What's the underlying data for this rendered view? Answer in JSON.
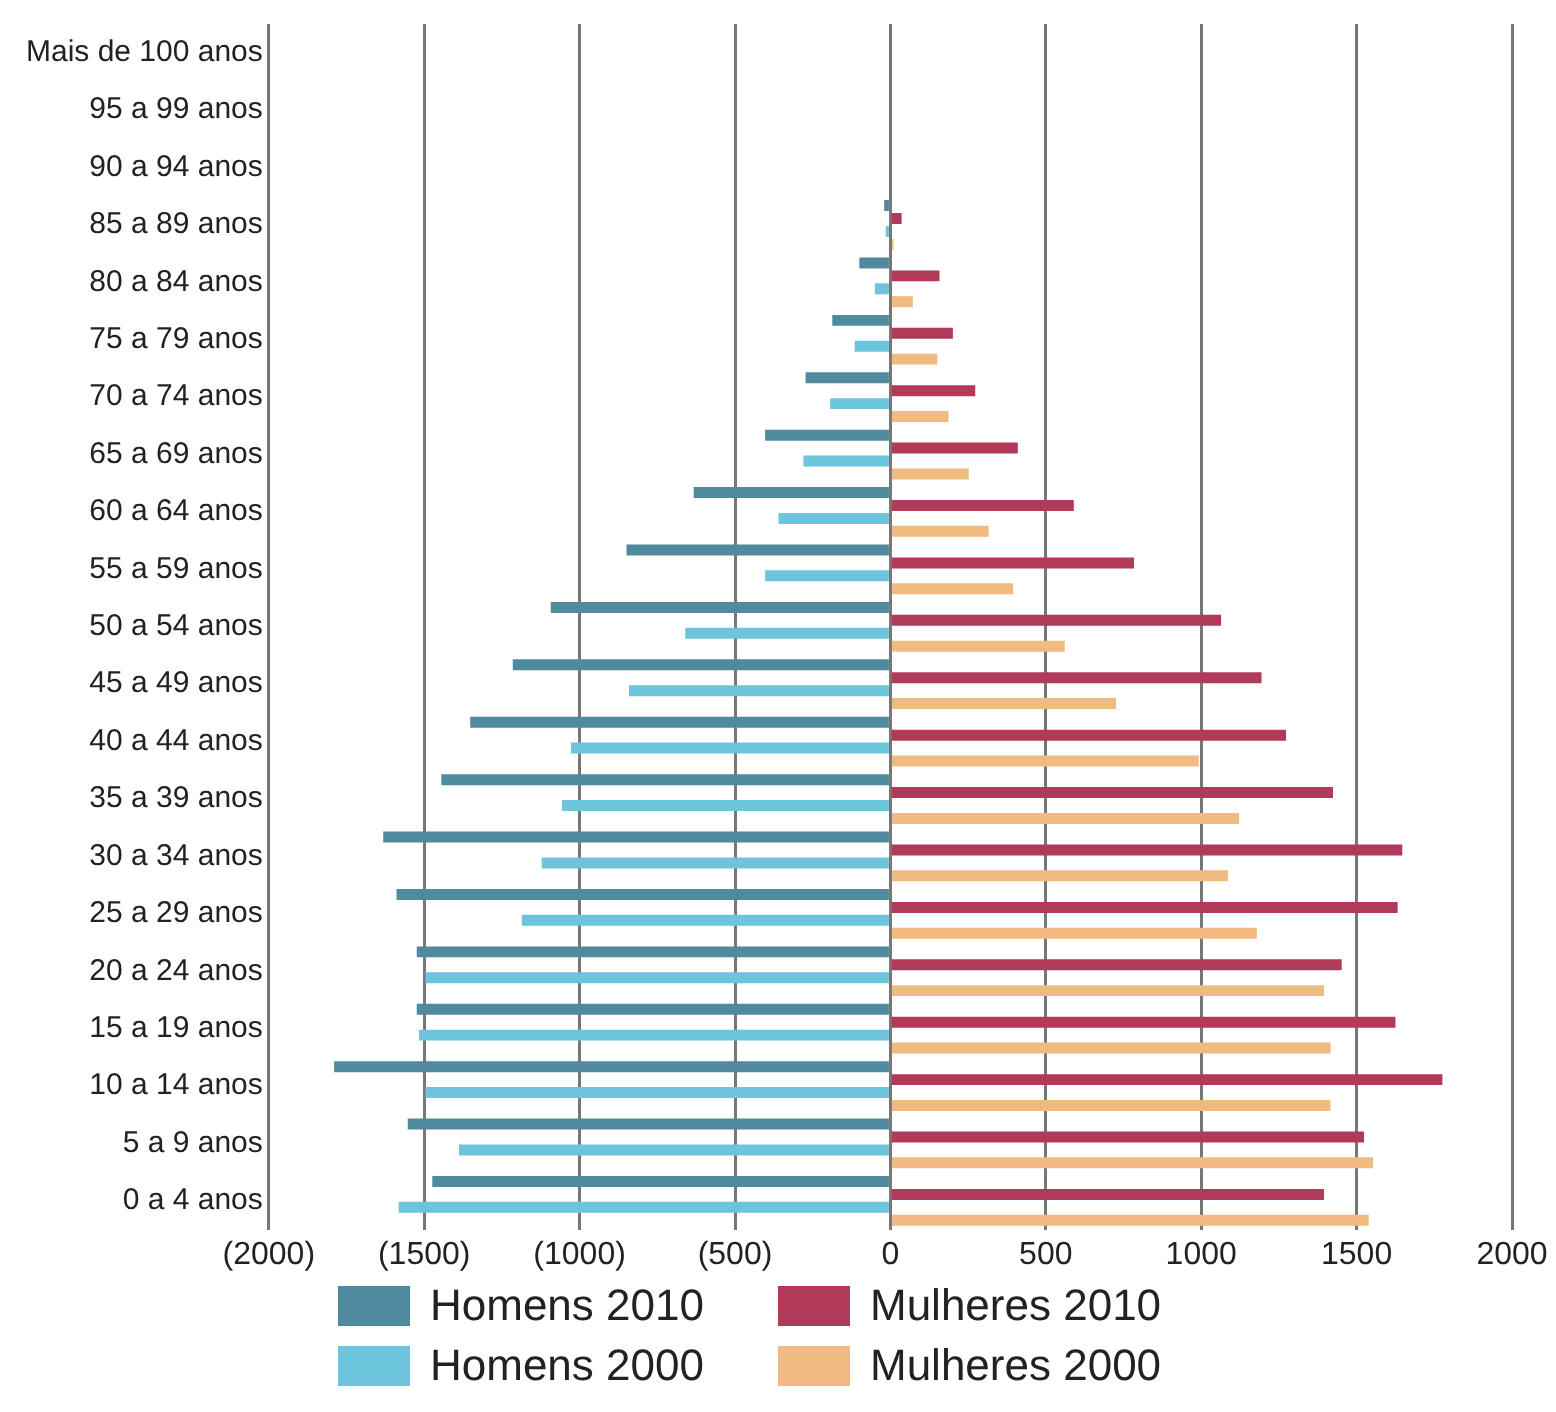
{
  "chart_data": {
    "type": "bar",
    "orientation": "horizontal",
    "categories": [
      "Mais de 100 anos",
      "95 a 99 anos",
      "90 a 94 anos",
      "85 a 89 anos",
      "80 a 84 anos",
      "75 a 79 anos",
      "70 a 74 anos",
      "65 a 69 anos",
      "60 a 64 anos",
      "55 a 59 anos",
      "50 a 54 anos",
      "45 a 49 anos",
      "40 a 44 anos",
      "35 a 39 anos",
      "30 a 34 anos",
      "25 a 29 anos",
      "20 a 24 anos",
      "15 a 19 anos",
      "10 a 14 anos",
      "5 a 9 anos",
      "0 a 4 anos"
    ],
    "series": [
      {
        "name": "Homens 2010",
        "color": "#4f8a9e",
        "values": [
          0,
          null,
          null,
          -20,
          -100,
          -187,
          -273,
          -403,
          -633,
          -849,
          -1093,
          -1215,
          -1352,
          -1445,
          -1632,
          -1589,
          -1524,
          -1524,
          -1790,
          -1553,
          -1474
        ]
      },
      {
        "name": "Mulheres 2010",
        "color": "#b03a58",
        "values": [
          0,
          null,
          null,
          36,
          158,
          201,
          273,
          410,
          590,
          784,
          1064,
          1194,
          1273,
          1424,
          1647,
          1632,
          1452,
          1625,
          1776,
          1524,
          1395
        ]
      },
      {
        "name": "Homens 2000",
        "color": "#6cc5dc",
        "values": [
          0,
          null,
          null,
          -15,
          -50,
          -115,
          -194,
          -280,
          -360,
          -403,
          -660,
          -841,
          -1028,
          -1057,
          -1122,
          -1186,
          -1496,
          -1517,
          -1496,
          -1388,
          -1582
        ]
      },
      {
        "name": "Mulheres 2000",
        "color": "#f0bb80",
        "values": [
          0,
          null,
          null,
          10,
          72,
          151,
          187,
          252,
          316,
          395,
          561,
          726,
          992,
          1122,
          1086,
          1179,
          1395,
          1416,
          1416,
          1553,
          1539
        ]
      }
    ],
    "xlim": [
      -2000,
      2000
    ],
    "xticks": [
      {
        "value": -2000,
        "label": "(2000)"
      },
      {
        "value": -1500,
        "label": "(1500)"
      },
      {
        "value": -1000,
        "label": "(1000)"
      },
      {
        "value": -500,
        "label": "(500)"
      },
      0,
      500,
      1000,
      1500,
      2000
    ],
    "grid": "x",
    "legend": "bottom"
  }
}
